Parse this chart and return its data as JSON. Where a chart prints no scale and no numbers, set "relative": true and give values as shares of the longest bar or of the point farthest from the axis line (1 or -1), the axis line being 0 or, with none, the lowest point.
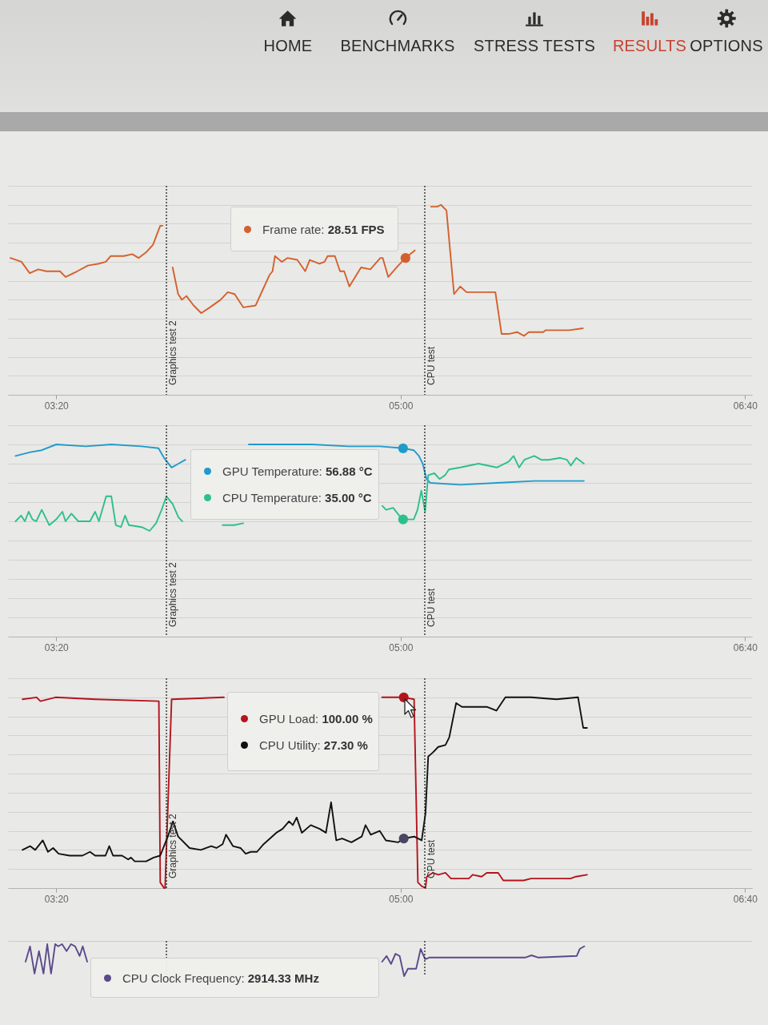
{
  "chart_data": [
    {
      "type": "other",
      "categories": [
        "HOME",
        "BENCHMARKS",
        "STRESS TESTS",
        "RESULTS",
        "OPTIONS"
      ],
      "colors": [
        "#2b2b2b",
        "#2b2b2b",
        "#2b2b2b",
        "#c8412f",
        "#2b2b2b"
      ]
    },
    {
      "type": "line",
      "relative": true,
      "grid": "y",
      "xlim": [
        186,
        402
      ],
      "xticks": [
        {
          "value": 200,
          "label": "03:20"
        },
        {
          "value": 300,
          "label": "05:00"
        },
        {
          "value": 400,
          "label": "06:40"
        }
      ],
      "ref_lines": [
        {
          "axis": "x",
          "value": 232,
          "label": "Graphics test 2",
          "line_style": "dotted",
          "color": "#222222"
        },
        {
          "axis": "x",
          "value": 307,
          "label": "CPU test",
          "line_style": "dotted",
          "color": "#222222"
        }
      ],
      "annotations": [
        {
          "text": "Frame rate: 28.51 FPS",
          "x": 301.4,
          "y": 0.72
        }
      ],
      "series": [
        {
          "color": "#d4602c",
          "x": [
            186.7,
            189.9,
            192.3,
            194.8,
            197.1,
            199.5,
            201.1,
            202.7,
            206.1,
            209.2,
            212.4,
            214.4,
            215.8,
            219.6,
            222.1,
            223.9,
            226.1,
            228.1,
            230.2,
            230.9,
            232,
            233.8,
            235.4,
            236.5,
            237.8,
            239.9,
            242.1,
            244.6,
            247.7,
            249.8,
            251.8,
            254.3,
            257.9,
            259.9,
            261.9,
            262.8,
            263.5,
            265.5,
            267.1,
            270.0,
            272.3,
            273.6,
            276.4,
            277.9,
            278.8,
            280.9,
            282.4,
            283.6,
            285.1,
            288.5,
            291.2,
            294.1,
            294.8,
            296.4,
            299.3,
            301.4,
            304.1,
            306,
            308.8,
            310.6,
            311.7,
            313.3,
            315.5,
            317.3,
            319.1,
            322.5,
            327.5,
            329.3,
            331.3,
            333.8,
            335.8,
            337.2,
            341.4,
            342.1,
            348.9,
            352.9
          ],
          "values": [
            0.72,
            0.7,
            0.64,
            0.66,
            0.65,
            0.65,
            0.65,
            0.62,
            0.65,
            0.68,
            0.69,
            0.7,
            0.73,
            0.73,
            0.74,
            0.72,
            0.75,
            0.79,
            0.89,
            0.89,
            null,
            0.67,
            0.53,
            0.5,
            0.52,
            0.47,
            0.43,
            0.46,
            0.5,
            0.54,
            0.53,
            0.46,
            0.47,
            0.55,
            0.63,
            0.65,
            0.73,
            0.7,
            0.72,
            0.71,
            0.65,
            0.71,
            0.69,
            0.7,
            0.73,
            0.73,
            0.65,
            0.65,
            0.57,
            0.67,
            0.66,
            0.72,
            0.72,
            0.62,
            0.68,
            0.72,
            0.76,
            null,
            0.99,
            0.99,
            1.0,
            0.97,
            0.53,
            0.57,
            0.54,
            0.54,
            0.54,
            0.32,
            0.32,
            0.33,
            0.31,
            0.33,
            0.33,
            0.34,
            0.34,
            0.35
          ]
        }
      ]
    },
    {
      "type": "line",
      "relative": true,
      "grid": "y",
      "xlim": [
        186,
        402
      ],
      "xticks": [
        {
          "value": 200,
          "label": "03:20"
        },
        {
          "value": 300,
          "label": "05:00"
        },
        {
          "value": 400,
          "label": "06:40"
        }
      ],
      "ref_lines": [
        {
          "axis": "x",
          "value": 232,
          "label": "Graphics test 2",
          "line_style": "dotted",
          "color": "#222222"
        },
        {
          "axis": "x",
          "value": 307,
          "label": "CPU test",
          "line_style": "dotted",
          "color": "#222222"
        }
      ],
      "annotations": [
        {
          "text": "GPU Temperature: 56.88 °C",
          "x": 300.7,
          "y": 0.98
        },
        {
          "text": "CPU Temperature: 35.00 °C",
          "x": 300.7,
          "y": 0.61
        }
      ],
      "series": [
        {
          "color": "#1f9bcb",
          "x": [
            188.2,
            192.5,
            195.8,
            200.0,
            208.6,
            216.0,
            224.8,
            229.7,
            231.3,
            233.5,
            235.5,
            237.5,
            246,
            255.9,
            263.4,
            274.3,
            284.9,
            294.0,
            300.7,
            303.8,
            305.3,
            306.4,
            307.5,
            308.6,
            317.3,
            327.9,
            338.8,
            353.2
          ],
          "values": [
            0.94,
            0.96,
            0.97,
            1.0,
            0.99,
            1.0,
            0.99,
            0.98,
            0.93,
            0.88,
            0.9,
            0.92,
            null,
            1.0,
            1.0,
            1.0,
            0.99,
            0.99,
            0.98,
            0.97,
            0.94,
            0.9,
            0.82,
            0.8,
            0.79,
            0.8,
            0.81,
            0.81
          ]
        },
        {
          "color": "#2cbf8f",
          "x": [
            188.2,
            189.8,
            190.9,
            192.0,
            193.1,
            194.2,
            195.8,
            198.0,
            200.0,
            201.8,
            202.7,
            204.4,
            206.4,
            209.8,
            211.3,
            212.4,
            214.5,
            216.0,
            217.3,
            218.8,
            220.0,
            221.1,
            224.8,
            227.1,
            229.0,
            230.6,
            232.0,
            233.8,
            235.5,
            236.6,
            242,
            248.3,
            251.7,
            254.3,
            275,
            294.7,
            295.8,
            297.8,
            299.6,
            300.7,
            303.8,
            304.9,
            306.0,
            307.1,
            308.0,
            309.8,
            311.3,
            312.9,
            314.0,
            317.3,
            322.6,
            327.9,
            331.3,
            332.8,
            334.4,
            335.9,
            338.8,
            340.8,
            343.0,
            346.3,
            348.3,
            349.4,
            351.0,
            353.2
          ],
          "values": [
            0.6,
            0.63,
            0.6,
            0.65,
            0.61,
            0.6,
            0.66,
            0.58,
            0.61,
            0.65,
            0.6,
            0.64,
            0.6,
            0.6,
            0.65,
            0.6,
            0.73,
            0.73,
            0.58,
            0.57,
            0.63,
            0.58,
            0.57,
            0.55,
            0.59,
            0.66,
            0.73,
            0.69,
            0.62,
            0.6,
            null,
            0.58,
            0.58,
            0.59,
            null,
            0.68,
            0.66,
            0.67,
            0.63,
            0.61,
            0.61,
            0.66,
            0.76,
            0.65,
            0.84,
            0.85,
            0.82,
            0.84,
            0.87,
            0.88,
            0.9,
            0.88,
            0.91,
            0.94,
            0.88,
            0.92,
            0.94,
            0.92,
            0.92,
            0.93,
            0.92,
            0.89,
            0.93,
            0.9
          ]
        }
      ]
    },
    {
      "type": "line",
      "relative": true,
      "grid": "y",
      "xlim": [
        186,
        402
      ],
      "xticks": [
        {
          "value": 200,
          "label": "03:20"
        },
        {
          "value": 300,
          "label": "05:00"
        },
        {
          "value": 400,
          "label": "06:40"
        }
      ],
      "ref_lines": [
        {
          "axis": "x",
          "value": 232,
          "label": "Graphics test 2",
          "line_style": "dotted",
          "color": "#222222"
        },
        {
          "axis": "x",
          "value": 307,
          "label": "CPU test",
          "line_style": "dotted",
          "color": "#222222"
        }
      ],
      "annotations": [
        {
          "text": "GPU Load: 100.00 %",
          "x": 300.9,
          "y": 1.0
        },
        "CPU Utility: 27.30 %"
      ],
      "series": [
        {
          "color": "#b3141d",
          "x": [
            190.2,
            194.3,
            195.4,
            199.8,
            211.3,
            229.8,
            230.2,
            231.3,
            231.6,
            233.5,
            248.7,
            270,
            294.6,
            300.9,
            303.9,
            305.0,
            306.1,
            307.2,
            307.6,
            309.3,
            310.9,
            313.0,
            314.6,
            319.8,
            320.9,
            323.5,
            325.0,
            328.3,
            329.8,
            335.7,
            337.8,
            349.3,
            350.9,
            354.1
          ],
          "values": [
            0.99,
            1.0,
            0.98,
            1.0,
            0.99,
            0.98,
            0.03,
            0.0,
            0.0,
            0.99,
            1.0,
            null,
            1.0,
            1.0,
            0.99,
            0.03,
            0.01,
            0.0,
            0.06,
            0.08,
            0.07,
            0.08,
            0.05,
            0.05,
            0.07,
            0.06,
            0.08,
            0.08,
            0.04,
            0.04,
            0.05,
            0.05,
            0.06,
            0.07
          ]
        },
        {
          "color": "#111111",
          "x": [
            190.2,
            192.4,
            193.9,
            196.1,
            197.6,
            199.1,
            200.7,
            203.9,
            207.6,
            209.8,
            211.3,
            214.3,
            215.4,
            216.5,
            219.1,
            220.9,
            221.7,
            222.8,
            226.1,
            228.3,
            230.2,
            232.4,
            233.9,
            235.4,
            238.7,
            242.0,
            245.0,
            246.5,
            248.3,
            249.3,
            251.3,
            253.5,
            255.0,
            256.5,
            258.3,
            260.2,
            263.9,
            265.7,
            267.6,
            268.7,
            269.8,
            271.3,
            273.9,
            276.5,
            278.3,
            279.8,
            281.3,
            283.0,
            285.7,
            288.7,
            289.8,
            291.3,
            293.9,
            295.7,
            299.3,
            300.9,
            303.9,
            306.1,
            307.2,
            308.0,
            309.3,
            310.9,
            313.0,
            314.1,
            316.1,
            317.8,
            322.0,
            325.0,
            327.8,
            330.4,
            337.8,
            345.2,
            351.5,
            353.0,
            354.1
          ],
          "values": [
            0.2,
            0.22,
            0.2,
            0.25,
            0.19,
            0.21,
            0.18,
            0.17,
            0.17,
            0.19,
            0.17,
            0.17,
            0.22,
            0.17,
            0.17,
            0.15,
            0.16,
            0.14,
            0.14,
            0.16,
            0.17,
            0.27,
            0.35,
            0.27,
            0.21,
            0.2,
            0.22,
            0.21,
            0.23,
            0.28,
            0.22,
            0.21,
            0.18,
            0.19,
            0.19,
            0.23,
            0.29,
            0.31,
            0.35,
            0.33,
            0.37,
            0.29,
            0.33,
            0.31,
            0.29,
            0.45,
            0.25,
            0.26,
            0.24,
            0.27,
            0.33,
            0.28,
            0.3,
            0.25,
            0.24,
            0.26,
            0.27,
            0.25,
            0.39,
            0.69,
            0.71,
            0.74,
            0.75,
            0.79,
            0.97,
            0.95,
            0.95,
            0.95,
            0.93,
            1.0,
            1.0,
            0.99,
            1.0,
            0.84,
            0.84
          ]
        },
        {
          "type": "scatter",
          "color": "#4b4560",
          "x": [
            300.9
          ],
          "values": [
            0.26
          ]
        }
      ]
    },
    {
      "type": "line",
      "relative": true,
      "tick_labels": false,
      "xlim": [
        186,
        402
      ],
      "ref_lines": [
        {
          "axis": "x",
          "value": 232,
          "line_style": "dotted",
          "color": "#222222"
        },
        {
          "axis": "x",
          "value": 307,
          "line_style": "dotted",
          "color": "#222222"
        }
      ],
      "annotations": [
        "CPU Clock Frequency: 2914.33 MHz"
      ],
      "series": [
        {
          "color": "#5b4a8c",
          "x": [
            191.1,
            192.4,
            193.7,
            195.0,
            196.3,
            197.4,
            198.5,
            199.7,
            200.6,
            201.7,
            203.0,
            204.3,
            205.5,
            206.8,
            207.7,
            209.0,
            250,
            294.6,
            295.9,
            297.2,
            298.5,
            299.7,
            301.0,
            302.1,
            304.5,
            305.8,
            307.1,
            308.3,
            322.8,
            336.1,
            338.0,
            340.0,
            351.1,
            352.0,
            353.3
          ],
          "values": [
            0.45,
            0.93,
            0.08,
            0.78,
            0.08,
            1.0,
            0.08,
            1.0,
            0.93,
            1.0,
            0.78,
            1.0,
            0.93,
            0.63,
            0.93,
            0.45,
            null,
            0.45,
            0.63,
            0.38,
            0.7,
            0.63,
            0.0,
            0.23,
            0.23,
            0.85,
            0.53,
            0.58,
            0.58,
            0.58,
            0.65,
            0.58,
            0.63,
            0.85,
            0.93
          ]
        }
      ]
    }
  ]
}
